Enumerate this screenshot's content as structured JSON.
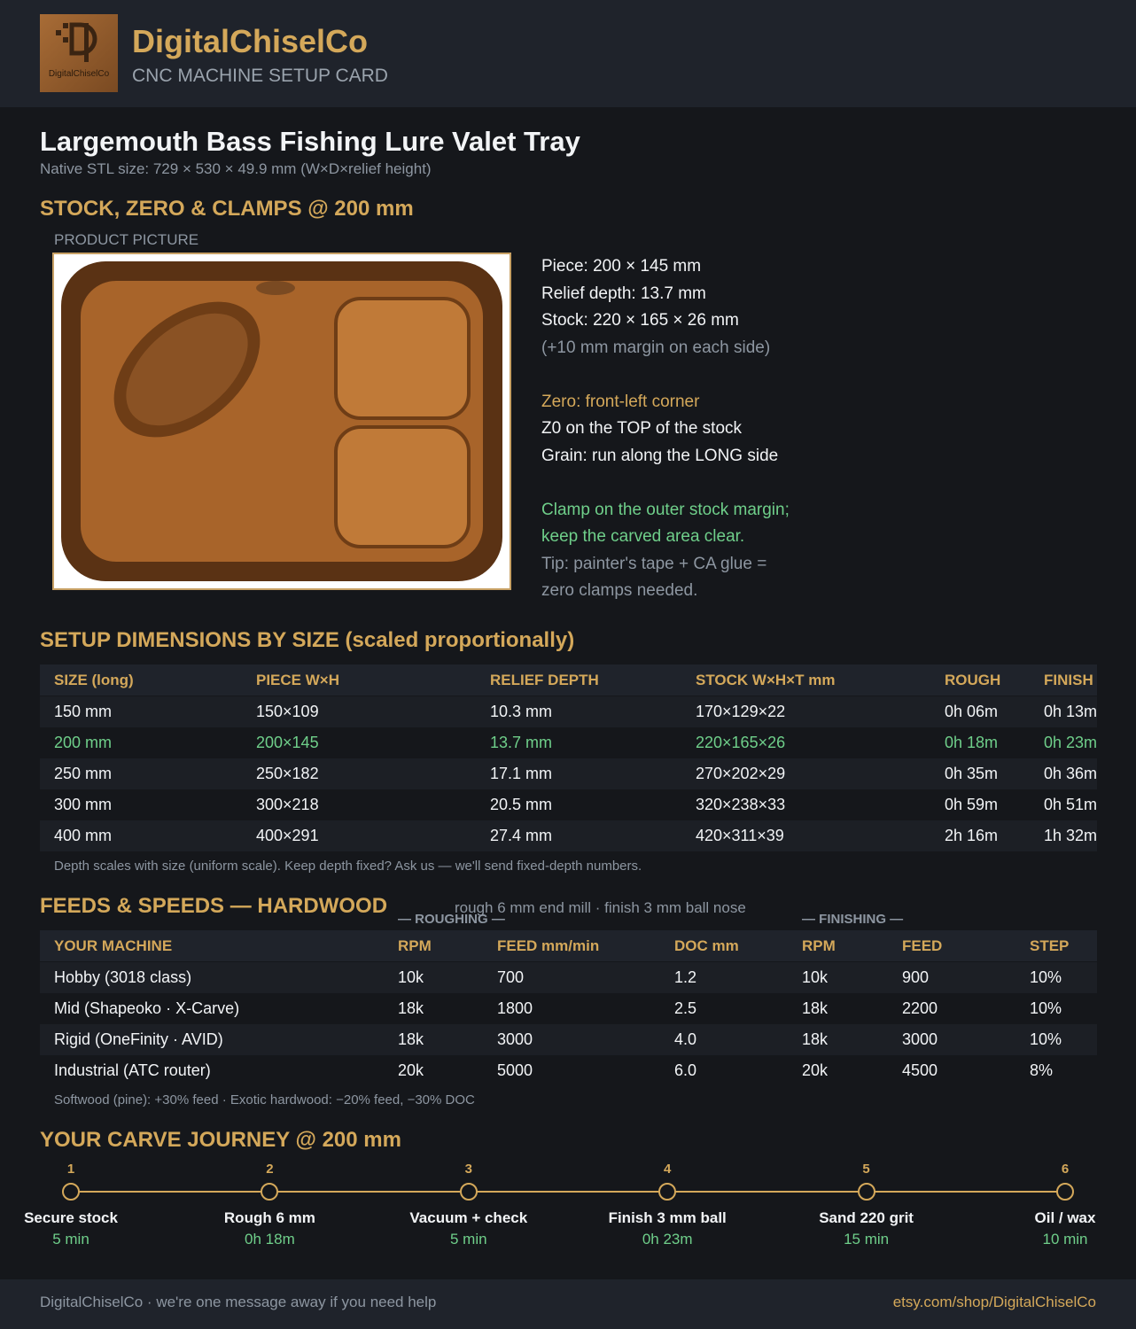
{
  "header": {
    "logo_text": "DigitalChiselCo",
    "brand": "DigitalChiselCo",
    "subtitle": "CNC MACHINE SETUP CARD"
  },
  "product": {
    "title": "Largemouth Bass Fishing Lure Valet Tray",
    "native_size": "Native STL size: 729 × 530 × 49.9 mm  (W×D×relief height)"
  },
  "stock_section": {
    "heading": "STOCK, ZERO & CLAMPS  @ 200 mm",
    "picture_label": "PRODUCT PICTURE",
    "blocks": [
      [
        {
          "text": "Piece: 200 × 145 mm",
          "tone": "white"
        },
        {
          "text": "Relief depth: 13.7 mm",
          "tone": "white"
        },
        {
          "text": "Stock: 220 × 165 × 26 mm",
          "tone": "white"
        },
        {
          "text": "(+10 mm margin on each side)",
          "tone": "muted"
        }
      ],
      [
        {
          "text": "Zero: front-left corner",
          "tone": "gold"
        },
        {
          "text": "Z0 on the TOP of the stock",
          "tone": "white"
        },
        {
          "text": "Grain: run along the LONG side",
          "tone": "white"
        }
      ],
      [
        {
          "text": "Clamp on the outer stock margin;",
          "tone": "green"
        },
        {
          "text": "keep the carved area clear.",
          "tone": "green"
        },
        {
          "text": "Tip: painter's tape + CA glue =",
          "tone": "muted"
        },
        {
          "text": "zero clamps needed.",
          "tone": "muted"
        }
      ]
    ]
  },
  "dimensions": {
    "heading": "SETUP DIMENSIONS BY SIZE (scaled proportionally)",
    "columns": [
      "SIZE (long)",
      "PIECE W×H",
      "RELIEF DEPTH",
      "STOCK W×H×T mm",
      "ROUGH",
      "FINISH"
    ],
    "rows": [
      [
        "150 mm",
        "150×109",
        "10.3 mm",
        "170×129×22",
        "0h 06m",
        "0h 13m"
      ],
      [
        "200 mm",
        "200×145",
        "13.7 mm",
        "220×165×26",
        "0h 18m",
        "0h 23m"
      ],
      [
        "250 mm",
        "250×182",
        "17.1 mm",
        "270×202×29",
        "0h 35m",
        "0h 36m"
      ],
      [
        "300 mm",
        "300×218",
        "20.5 mm",
        "320×238×33",
        "0h 59m",
        "0h 51m"
      ],
      [
        "400 mm",
        "400×291",
        "27.4 mm",
        "420×311×39",
        "2h 16m",
        "1h 32m"
      ]
    ],
    "highlighted_row": 1,
    "note": "Depth scales with size (uniform scale). Keep depth fixed? Ask us — we'll send fixed-depth numbers."
  },
  "feeds": {
    "heading": "FEEDS & SPEEDS — HARDWOOD",
    "subheading": "rough 6 mm end mill · finish 3 mm ball nose",
    "groups": [
      {
        "label": "— ROUGHING —",
        "column": 1
      },
      {
        "label": "— FINISHING —",
        "column": 4
      }
    ],
    "columns": [
      "YOUR MACHINE",
      "RPM",
      "FEED mm/min",
      "DOC mm",
      "RPM",
      "FEED",
      "STEP"
    ],
    "rows": [
      [
        "Hobby (3018 class)",
        "10k",
        "700",
        "1.2",
        "10k",
        "900",
        "10%"
      ],
      [
        "Mid (Shapeoko · X-Carve)",
        "18k",
        "1800",
        "2.5",
        "18k",
        "2200",
        "10%"
      ],
      [
        "Rigid (OneFinity · AVID)",
        "18k",
        "3000",
        "4.0",
        "18k",
        "3000",
        "10%"
      ],
      [
        "Industrial (ATC router)",
        "20k",
        "5000",
        "6.0",
        "20k",
        "4500",
        "8%"
      ]
    ],
    "note": "Softwood (pine): +30% feed · Exotic hardwood: −20% feed, −30% DOC"
  },
  "journey": {
    "heading": "YOUR CARVE JOURNEY @ 200 mm",
    "steps": [
      {
        "number": "1",
        "label": "Secure stock",
        "time": "5 min"
      },
      {
        "number": "2",
        "label": "Rough 6 mm",
        "time": "0h 18m"
      },
      {
        "number": "3",
        "label": "Vacuum + check",
        "time": "5 min"
      },
      {
        "number": "4",
        "label": "Finish 3 mm ball",
        "time": "0h 23m"
      },
      {
        "number": "5",
        "label": "Sand 220 grit",
        "time": "15 min"
      },
      {
        "number": "6",
        "label": "Oil / wax",
        "time": "10 min"
      }
    ]
  },
  "footer": {
    "left": "DigitalChiselCo · we're one message away if you need help",
    "right": "etsy.com/shop/DigitalChiselCo"
  }
}
